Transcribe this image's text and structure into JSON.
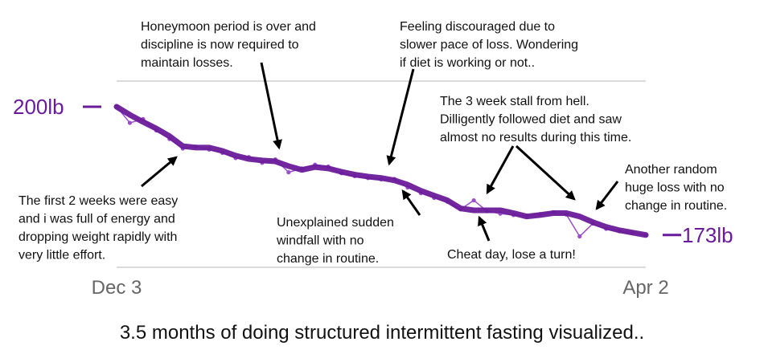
{
  "chart_data": {
    "type": "line",
    "title": "3.5 months of doing structured intermittent fasting visualized..",
    "categories": [
      "Dec 3",
      null,
      null,
      null,
      null,
      null,
      null,
      null,
      null,
      null,
      null,
      null,
      null,
      null,
      null,
      null,
      null,
      null,
      null,
      null,
      null,
      null,
      null,
      null,
      null,
      null,
      null,
      null,
      null,
      null,
      null,
      null,
      null,
      null,
      null,
      null,
      null,
      null,
      null,
      null,
      "Apr 2"
    ],
    "series": [
      {
        "color": "#9c4dcc",
        "values": [
          200,
          196.6,
          197.4,
          195.0,
          193.2,
          191.2,
          191.6,
          191.0,
          190.3,
          189.2,
          189.4,
          188.2,
          188.9,
          186.2,
          187.0,
          187.8,
          187.4,
          186.0,
          185.4,
          185.0,
          184.7,
          184.8,
          183.0,
          181.8,
          180.8,
          180.0,
          178.4,
          180.3,
          178.0,
          177.5,
          177.2,
          177.0,
          177.4,
          177.8,
          177.3,
          172.7,
          175.4,
          174.3,
          173.8,
          173.4,
          173.0
        ]
      },
      {
        "color": "#6a1b9a",
        "values": [
          200,
          198.3,
          196.8,
          195.4,
          193.8,
          191.7,
          191.4,
          191.4,
          190.7,
          189.7,
          189.0,
          188.7,
          188.5,
          187.5,
          186.7,
          187.3,
          187.0,
          186.3,
          185.7,
          185.3,
          185.0,
          184.5,
          183.6,
          182.3,
          181.3,
          180.3,
          178.6,
          178.2,
          178.2,
          178.2,
          177.6,
          176.9,
          177.2,
          177.6,
          177.6,
          176.9,
          175.7,
          174.7,
          174.0,
          173.5,
          173.0
        ]
      }
    ],
    "ylim": [
      166.2,
      205.4
    ],
    "grid": true,
    "start_label": {
      "value": 200,
      "label": "200lb"
    },
    "end_label": {
      "value": 173,
      "label": "173lb"
    },
    "annotations": [
      {
        "lines": [
          "Honeymoon period is over and",
          "discipline is now required to",
          "maintain losses."
        ]
      },
      {
        "lines": [
          "Feeling discouraged due to",
          "slower pace of loss. Wondering",
          "if diet is working or not.."
        ]
      },
      {
        "lines": [
          "The 3 week stall from hell.",
          "Dilligently followed diet and saw",
          "almost no results during this time."
        ]
      },
      {
        "lines": [
          "Another random",
          "huge loss with no",
          "change in routine."
        ]
      },
      {
        "lines": [
          "The first 2 weeks were easy",
          "and i was full of energy and",
          "dropping weight rapidly with",
          "very little effort."
        ]
      },
      {
        "lines": [
          "Unexplained sudden",
          "windfall with no",
          "change in routine."
        ]
      },
      {
        "lines": [
          "Cheat day, lose a turn!"
        ]
      }
    ]
  }
}
